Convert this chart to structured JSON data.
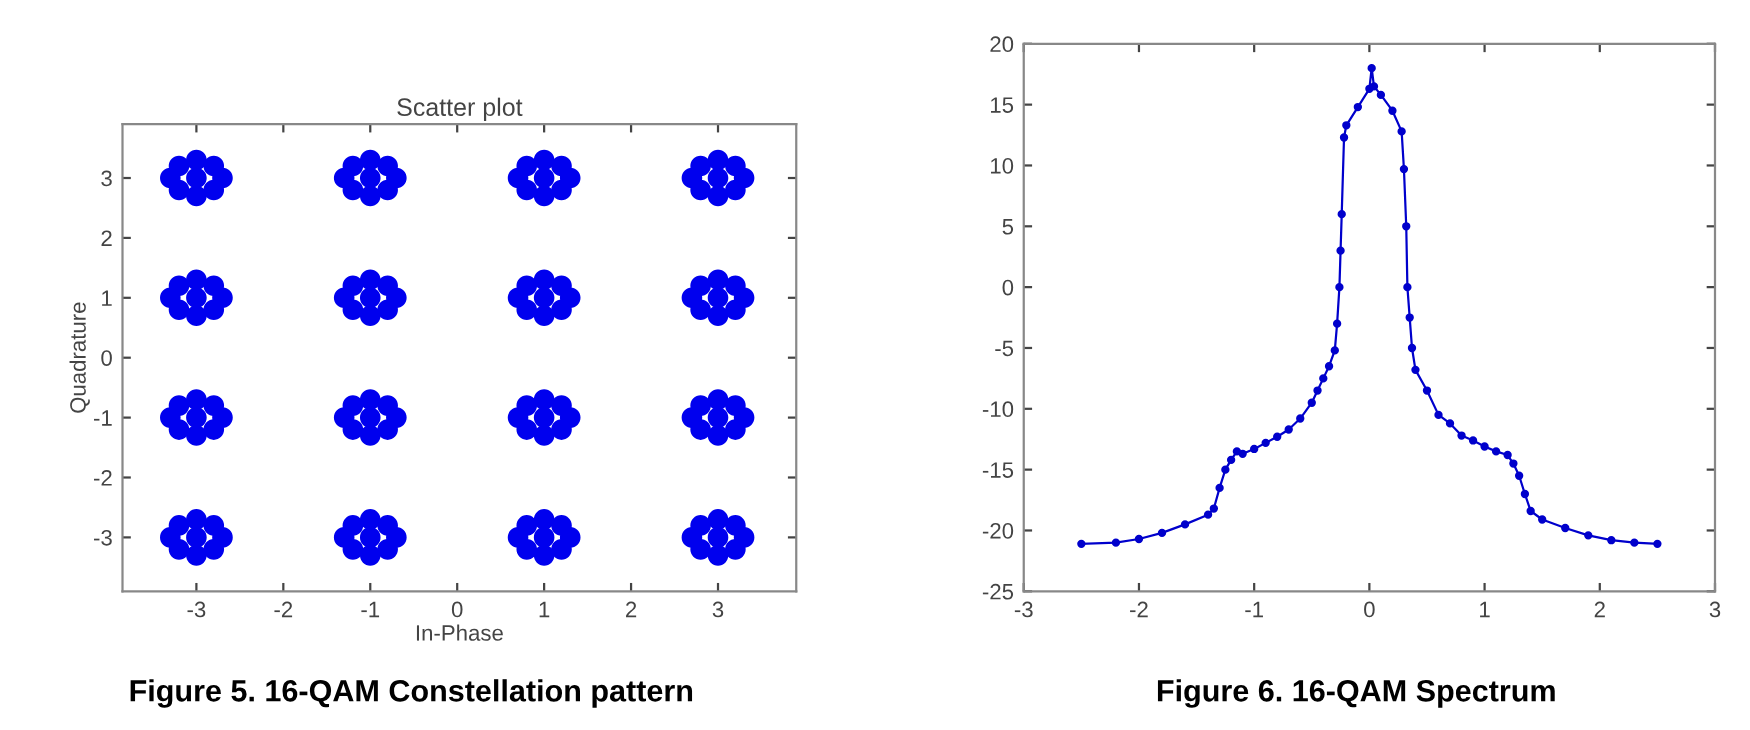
{
  "chart_data": [
    {
      "type": "scatter",
      "title": "Scatter plot",
      "xlabel": "In-Phase",
      "ylabel": "Quadrature",
      "marker": "circle",
      "grid": false,
      "xlim": [
        -3.85,
        3.9
      ],
      "ylim": [
        -3.9,
        3.9
      ],
      "xticks": [
        -3,
        -2,
        -1,
        0,
        1,
        2,
        3
      ],
      "yticks": [
        -3,
        -2,
        -1,
        0,
        1,
        2,
        3
      ],
      "annotations": [
        "Figure 5. 16-QAM Constellation pattern"
      ],
      "series": [
        {
          "color": "#0000ee",
          "x": [
            -3,
            -3.3,
            -2.7,
            -3,
            -3,
            -3.2,
            -2.8,
            -3.2,
            -2.8,
            -1,
            -1.3,
            -0.7,
            -1,
            -1,
            -1.2,
            -0.8,
            -1.2,
            -0.8,
            1,
            0.7,
            1.3,
            1,
            1,
            0.8,
            1.2,
            0.8,
            1.2,
            3,
            2.7,
            3.3,
            3,
            3,
            2.8,
            3.2,
            2.8,
            3.2,
            -3,
            -3.3,
            -2.7,
            -3,
            -3,
            -3.2,
            -2.8,
            -3.2,
            -2.8,
            -1,
            -1.3,
            -0.7,
            -1,
            -1,
            -1.2,
            -0.8,
            -1.2,
            -0.8,
            1,
            0.7,
            1.3,
            1,
            1,
            0.8,
            1.2,
            0.8,
            1.2,
            3,
            2.7,
            3.3,
            3,
            3,
            2.8,
            3.2,
            2.8,
            3.2,
            -3,
            -3.3,
            -2.7,
            -3,
            -3,
            -3.2,
            -2.8,
            -3.2,
            -2.8,
            -1,
            -1.3,
            -0.7,
            -1,
            -1,
            -1.2,
            -0.8,
            -1.2,
            -0.8,
            1,
            0.7,
            1.3,
            1,
            1,
            0.8,
            1.2,
            0.8,
            1.2,
            3,
            2.7,
            3.3,
            3,
            3,
            2.8,
            3.2,
            2.8,
            3.2,
            -3,
            -3.3,
            -2.7,
            -3,
            -3,
            -3.2,
            -2.8,
            -3.2,
            -2.8,
            -1,
            -1.3,
            -0.7,
            -1,
            -1,
            -1.2,
            -0.8,
            -1.2,
            -0.8,
            1,
            0.7,
            1.3,
            1,
            1,
            0.8,
            1.2,
            0.8,
            1.2,
            3,
            2.7,
            3.3,
            3,
            3,
            2.8,
            3.2,
            2.8,
            3.2
          ],
          "values": [
            3,
            3,
            3,
            3.3,
            2.7,
            3.2,
            3.2,
            2.8,
            2.8,
            3,
            3,
            3,
            3.3,
            2.7,
            3.2,
            3.2,
            2.8,
            2.8,
            3,
            3,
            3,
            3.3,
            2.7,
            3.2,
            3.2,
            2.8,
            2.8,
            3,
            3,
            3,
            3.3,
            2.7,
            3.2,
            3.2,
            2.8,
            2.8,
            1,
            1,
            1,
            1.3,
            0.7,
            1.2,
            1.2,
            0.8,
            0.8,
            1,
            1,
            1,
            1.3,
            0.7,
            1.2,
            1.2,
            0.8,
            0.8,
            1,
            1,
            1,
            1.3,
            0.7,
            1.2,
            1.2,
            0.8,
            0.8,
            1,
            1,
            1,
            1.3,
            0.7,
            1.2,
            1.2,
            0.8,
            0.8,
            -1,
            -1,
            -1,
            -0.7,
            -1.3,
            -0.8,
            -0.8,
            -1.2,
            -1.2,
            -1,
            -1,
            -1,
            -0.7,
            -1.3,
            -0.8,
            -0.8,
            -1.2,
            -1.2,
            -1,
            -1,
            -1,
            -0.7,
            -1.3,
            -0.8,
            -0.8,
            -1.2,
            -1.2,
            -1,
            -1,
            -1,
            -0.7,
            -1.3,
            -0.8,
            -0.8,
            -1.2,
            -1.2,
            -3,
            -3,
            -3,
            -2.7,
            -3.3,
            -2.8,
            -2.8,
            -3.2,
            -3.2,
            -3,
            -3,
            -3,
            -2.7,
            -3.3,
            -2.8,
            -2.8,
            -3.2,
            -3.2,
            -3,
            -3,
            -3,
            -2.7,
            -3.3,
            -2.8,
            -2.8,
            -3.2,
            -3.2,
            -3,
            -3,
            -3,
            -2.7,
            -3.3,
            -2.8,
            -2.8,
            -3.2,
            -3.2
          ]
        }
      ]
    },
    {
      "type": "line",
      "marker": "circle",
      "line_style": "solid",
      "grid": false,
      "xlim": [
        -3,
        3
      ],
      "ylim": [
        -25,
        20
      ],
      "xticks": [
        -3,
        -2,
        -1,
        0,
        1,
        2,
        3
      ],
      "yticks": [
        -25,
        -20,
        -15,
        -10,
        -5,
        0,
        5,
        10,
        15,
        20
      ],
      "annotations": [
        "Figure 6. 16-QAM Spectrum"
      ],
      "series": [
        {
          "color": "#0000cc",
          "x": [
            -2.5,
            -2.2,
            -2.0,
            -1.8,
            -1.6,
            -1.4,
            -1.35,
            -1.3,
            -1.25,
            -1.2,
            -1.15,
            -1.1,
            -1.0,
            -0.9,
            -0.8,
            -0.7,
            -0.6,
            -0.5,
            -0.45,
            -0.4,
            -0.35,
            -0.3,
            -0.28,
            -0.26,
            -0.25,
            -0.24,
            -0.22,
            -0.2,
            -0.1,
            0,
            0.02,
            0.04,
            0.1,
            0.2,
            0.28,
            0.3,
            0.32,
            0.33,
            0.35,
            0.37,
            0.4,
            0.5,
            0.6,
            0.7,
            0.8,
            0.9,
            1.0,
            1.1,
            1.2,
            1.25,
            1.3,
            1.35,
            1.4,
            1.5,
            1.7,
            1.9,
            2.1,
            2.3,
            2.5
          ],
          "values": [
            -21.1,
            -21,
            -20.7,
            -20.2,
            -19.5,
            -18.7,
            -18.2,
            -16.5,
            -15,
            -14.2,
            -13.5,
            -13.7,
            -13.3,
            -12.8,
            -12.3,
            -11.7,
            -10.8,
            -9.5,
            -8.5,
            -7.5,
            -6.5,
            -5.2,
            -3,
            0,
            3,
            6,
            12.3,
            13.3,
            14.8,
            16.3,
            18,
            16.5,
            15.8,
            14.5,
            12.8,
            9.7,
            5,
            0,
            -2.5,
            -5,
            -6.8,
            -8.5,
            -10.5,
            -11.2,
            -12.2,
            -12.6,
            -13.1,
            -13.5,
            -13.8,
            -14.5,
            -15.5,
            -17,
            -18.4,
            -19.1,
            -19.8,
            -20.4,
            -20.8,
            -21,
            -21.1
          ]
        }
      ]
    }
  ]
}
